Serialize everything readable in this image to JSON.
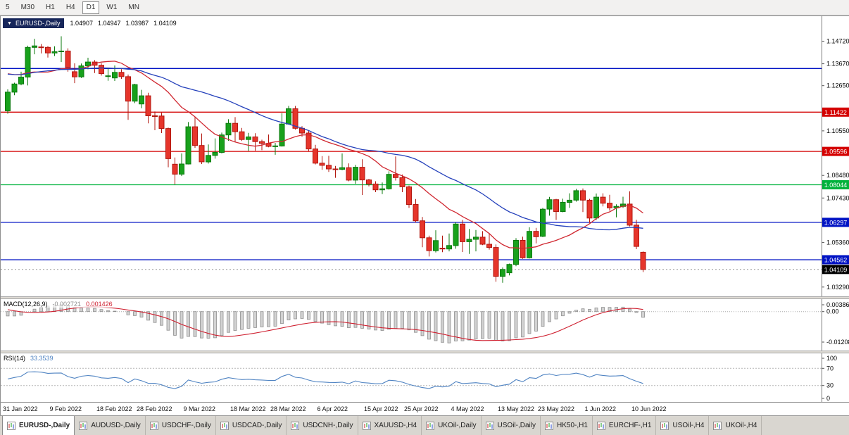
{
  "toolbar": {
    "timeframes": [
      {
        "label": "5",
        "selected": false
      },
      {
        "label": "M30",
        "selected": false
      },
      {
        "label": "H1",
        "selected": false
      },
      {
        "label": "H4",
        "selected": false
      },
      {
        "label": "D1",
        "selected": true
      },
      {
        "label": "W1",
        "selected": false
      },
      {
        "label": "MN",
        "selected": false
      }
    ]
  },
  "chart_header": {
    "collapse_icon": "▼",
    "symbol": "EURUSD-,Daily",
    "open": "1.04907",
    "high": "1.04947",
    "low": "1.03987",
    "close": "1.04109"
  },
  "colors": {
    "bull": "#18a11c",
    "bull_border": "#0b7a0e",
    "bear": "#e6352b",
    "bear_border": "#b2170f",
    "ma_fast": "#d02831",
    "ma_slow": "#2440bb",
    "sr_red": "#d40000",
    "sr_green": "#00b23c",
    "sr_blue": "#0013c4",
    "macd_signal": "#cf2030",
    "macd_bar_fill": "#d2d2d2",
    "macd_bar_stroke": "#8f8f8f",
    "rsi_line": "#4f83c2",
    "current_tag": "#000000"
  },
  "chart_data": [
    {
      "type": "candlestick",
      "symbol": "EURUSD-,Daily",
      "y_range": [
        1.0299,
        1.1575
      ],
      "y_ticks": [
        {
          "label": "1.14720",
          "value": 1.1472
        },
        {
          "label": "1.13670",
          "value": 1.1367
        },
        {
          "label": "1.12650",
          "value": 1.1265
        },
        {
          "label": "1.10550",
          "value": 1.1055
        },
        {
          "label": "1.08480",
          "value": 1.0848
        },
        {
          "label": "1.07430",
          "value": 1.0743
        },
        {
          "label": "1.05360",
          "value": 1.0536
        },
        {
          "label": "1.03290",
          "value": 1.0329
        }
      ],
      "x_labels": [
        {
          "label": "31 Jan 2022",
          "index": 0
        },
        {
          "label": "9 Feb 2022",
          "index": 7
        },
        {
          "label": "18 Feb 2022",
          "index": 14
        },
        {
          "label": "28 Feb 2022",
          "index": 20
        },
        {
          "label": "9 Mar 2022",
          "index": 27
        },
        {
          "label": "18 Mar 2022",
          "index": 34
        },
        {
          "label": "28 Mar 2022",
          "index": 40
        },
        {
          "label": "6 Apr 2022",
          "index": 47
        },
        {
          "label": "15 Apr 2022",
          "index": 54
        },
        {
          "label": "25 Apr 2022",
          "index": 60
        },
        {
          "label": "4 May 2022",
          "index": 67
        },
        {
          "label": "13 May 2022",
          "index": 74
        },
        {
          "label": "23 May 2022",
          "index": 80
        },
        {
          "label": "1 Jun 2022",
          "index": 87
        },
        {
          "label": "10 Jun 2022",
          "index": 94
        }
      ],
      "hlines": [
        {
          "value": 1.1345,
          "color": "sr_blue",
          "label": null
        },
        {
          "value": 1.11422,
          "color": "sr_red",
          "label": "1.11422"
        },
        {
          "value": 1.09596,
          "color": "sr_red",
          "label": "1.09596"
        },
        {
          "value": 1.08044,
          "color": "sr_green",
          "label": "1.08044"
        },
        {
          "value": 1.06297,
          "color": "sr_blue",
          "label": "1.06297"
        },
        {
          "value": 1.04562,
          "color": "sr_blue",
          "label": "1.04562"
        }
      ],
      "current_price": {
        "value": 1.04109,
        "label": "1.04109"
      },
      "moving_averages": [
        {
          "period": 14,
          "color": "ma_fast"
        },
        {
          "period": 30,
          "color": "ma_slow"
        }
      ],
      "indicator_warmup_closes": [
        1.13,
        1.129,
        1.131,
        1.132,
        1.1296,
        1.1331,
        1.1358,
        1.133,
        1.1296,
        1.132,
        1.1412,
        1.1452,
        1.1413,
        1.1324,
        1.1315,
        1.1345,
        1.1343,
        1.131,
        1.1246,
        1.1146
      ],
      "candles": [
        [
          1.1148,
          1.1248,
          1.1135,
          1.1235
        ],
        [
          1.1235,
          1.1279,
          1.1221,
          1.1273
        ],
        [
          1.1273,
          1.133,
          1.1267,
          1.1305
        ],
        [
          1.1305,
          1.1451,
          1.1266,
          1.1443
        ],
        [
          1.1443,
          1.1483,
          1.1411,
          1.145
        ],
        [
          1.1445,
          1.1459,
          1.1415,
          1.1443
        ],
        [
          1.1443,
          1.1449,
          1.1396,
          1.1417
        ],
        [
          1.1417,
          1.1448,
          1.1403,
          1.1423
        ],
        [
          1.1423,
          1.1495,
          1.1375,
          1.1426
        ],
        [
          1.1426,
          1.1439,
          1.133,
          1.1349
        ],
        [
          1.133,
          1.1369,
          1.1277,
          1.1306
        ],
        [
          1.1306,
          1.1368,
          1.1301,
          1.1357
        ],
        [
          1.1357,
          1.1395,
          1.1341,
          1.1375
        ],
        [
          1.1375,
          1.1384,
          1.1324,
          1.136
        ],
        [
          1.136,
          1.137,
          1.1312,
          1.1321
        ],
        [
          1.1311,
          1.1348,
          1.1288,
          1.1311
        ],
        [
          1.1301,
          1.1359,
          1.1287,
          1.1327
        ],
        [
          1.1327,
          1.1342,
          1.1297,
          1.1307
        ],
        [
          1.1307,
          1.1317,
          1.1106,
          1.1193
        ],
        [
          1.1193,
          1.1274,
          1.1184,
          1.127
        ],
        [
          1.118,
          1.1246,
          1.116,
          1.1218
        ],
        [
          1.1218,
          1.1232,
          1.109,
          1.1125
        ],
        [
          1.1125,
          1.1145,
          1.1058,
          1.1124
        ],
        [
          1.1124,
          1.1139,
          1.1045,
          1.1066
        ],
        [
          1.1066,
          1.107,
          1.0886,
          1.0926
        ],
        [
          1.09,
          1.0931,
          1.0806,
          1.0854
        ],
        [
          1.0854,
          1.095,
          1.0845,
          1.0901
        ],
        [
          1.0901,
          1.1096,
          1.0899,
          1.1074
        ],
        [
          1.1074,
          1.1121,
          1.0976,
          1.0987
        ],
        [
          1.0987,
          1.1043,
          1.0901,
          1.0911
        ],
        [
          1.0911,
          1.0992,
          1.0903,
          1.0941
        ],
        [
          1.0941,
          1.102,
          1.0926,
          1.0955
        ],
        [
          1.0955,
          1.1047,
          1.095,
          1.1036
        ],
        [
          1.1036,
          1.1109,
          1.1009,
          1.109
        ],
        [
          1.109,
          1.1119,
          1.1003,
          1.1051
        ],
        [
          1.1051,
          1.1069,
          1.1008,
          1.1015
        ],
        [
          1.1015,
          1.1046,
          1.0962,
          1.1027
        ],
        [
          1.1027,
          1.1044,
          1.0963,
          1.1005
        ],
        [
          1.1005,
          1.1014,
          1.0965,
          1.0997
        ],
        [
          1.0997,
          1.1038,
          1.0979,
          1.0983
        ],
        [
          1.0983,
          1.0999,
          1.0944,
          1.0985
        ],
        [
          1.0985,
          1.1137,
          1.0982,
          1.1087
        ],
        [
          1.1087,
          1.1171,
          1.1084,
          1.1158
        ],
        [
          1.1158,
          1.1171,
          1.1061,
          1.1067
        ],
        [
          1.1067,
          1.1077,
          1.1028,
          1.1045
        ],
        [
          1.1045,
          1.1055,
          1.0961,
          1.0971
        ],
        [
          1.0971,
          1.099,
          1.0899,
          1.0905
        ],
        [
          1.0905,
          1.0938,
          1.0874,
          1.0895
        ],
        [
          1.0895,
          1.0939,
          1.0864,
          1.0878
        ],
        [
          1.0878,
          1.0892,
          1.0837,
          1.0876
        ],
        [
          1.0876,
          1.095,
          1.0872,
          1.0884
        ],
        [
          1.0884,
          1.0904,
          1.0821,
          1.0826
        ],
        [
          1.0826,
          1.0897,
          1.0809,
          1.0886
        ],
        [
          1.0886,
          1.0923,
          1.0757,
          1.0827
        ],
        [
          1.0827,
          1.0832,
          1.0797,
          1.0808
        ],
        [
          1.0808,
          1.0821,
          1.077,
          1.0781
        ],
        [
          1.0781,
          1.0815,
          1.0761,
          1.0786
        ],
        [
          1.0786,
          1.0867,
          1.0782,
          1.0853
        ],
        [
          1.0853,
          1.0936,
          1.0824,
          1.0838
        ],
        [
          1.0838,
          1.0852,
          1.077,
          1.0795
        ],
        [
          1.0795,
          1.0801,
          1.0697,
          1.0713
        ],
        [
          1.0713,
          1.0738,
          1.0629,
          1.0637
        ],
        [
          1.0637,
          1.0655,
          1.0514,
          1.0558
        ],
        [
          1.0558,
          1.0568,
          1.0471,
          1.0498
        ],
        [
          1.0498,
          1.0593,
          1.049,
          1.0545
        ],
        [
          1.051,
          1.0568,
          1.0491,
          1.0506
        ],
        [
          1.0506,
          1.0578,
          1.0495,
          1.0522
        ],
        [
          1.0522,
          1.0631,
          1.0507,
          1.0622
        ],
        [
          1.0622,
          1.0641,
          1.0492,
          1.054
        ],
        [
          1.054,
          1.0599,
          1.0483,
          1.0551
        ],
        [
          1.0551,
          1.0594,
          1.0495,
          1.0561
        ],
        [
          1.0561,
          1.0589,
          1.0524,
          1.0528
        ],
        [
          1.0528,
          1.0579,
          1.0503,
          1.0513
        ],
        [
          1.0513,
          1.0527,
          1.0354,
          1.0379
        ],
        [
          1.0379,
          1.042,
          1.0349,
          1.0411
        ],
        [
          1.0395,
          1.0438,
          1.0383,
          1.0434
        ],
        [
          1.0434,
          1.0556,
          1.0426,
          1.0546
        ],
        [
          1.0546,
          1.0563,
          1.046,
          1.0465
        ],
        [
          1.0465,
          1.0607,
          1.0462,
          1.0588
        ],
        [
          1.0588,
          1.0604,
          1.0532,
          1.0563
        ],
        [
          1.0565,
          1.0697,
          1.0561,
          1.0691
        ],
        [
          1.0691,
          1.0748,
          1.0661,
          1.0735
        ],
        [
          1.0735,
          1.0739,
          1.0641,
          1.068
        ],
        [
          1.068,
          1.074,
          1.0677,
          1.0723
        ],
        [
          1.0723,
          1.0765,
          1.0697,
          1.0733
        ],
        [
          1.0733,
          1.0786,
          1.0726,
          1.0777
        ],
        [
          1.0777,
          1.0787,
          1.0678,
          1.0733
        ],
        [
          1.0733,
          1.0739,
          1.0627,
          1.065
        ],
        [
          1.065,
          1.0764,
          1.0641,
          1.0747
        ],
        [
          1.0747,
          1.0765,
          1.0704,
          1.0719
        ],
        [
          1.0719,
          1.0758,
          1.0684,
          1.0697
        ],
        [
          1.0697,
          1.0714,
          1.0653,
          1.0704
        ],
        [
          1.0704,
          1.0749,
          1.0697,
          1.0715
        ],
        [
          1.0715,
          1.0774,
          1.0611,
          1.0617
        ],
        [
          1.0617,
          1.0642,
          1.0505,
          1.0518
        ],
        [
          1.04907,
          1.04947,
          1.03987,
          1.04109
        ]
      ]
    },
    {
      "type": "macd",
      "name": "MACD(12,26,9)",
      "main_value": "-0.002721",
      "signal_value": "0.001426",
      "fast": 12,
      "slow": 26,
      "signal": 9,
      "y_ticks": [
        {
          "label": "0.00386",
          "value": 0.00386
        },
        {
          "label": "0.00",
          "value": 0
        },
        {
          "label": "-0.01208",
          "value": -0.01208
        }
      ]
    },
    {
      "type": "rsi",
      "name": "RSI(14)",
      "value": "33.3539",
      "period": 14,
      "levels": [
        70,
        30
      ],
      "y_ticks": [
        {
          "label": "100",
          "value": 100
        },
        {
          "label": "70",
          "value": 70
        },
        {
          "label": "30",
          "value": 30
        },
        {
          "label": "0",
          "value": 0
        }
      ]
    }
  ],
  "tabs": [
    {
      "label": "EURUSD-,Daily",
      "selected": true
    },
    {
      "label": "AUDUSD-,Daily",
      "selected": false
    },
    {
      "label": "USDCHF-,Daily",
      "selected": false
    },
    {
      "label": "USDCAD-,Daily",
      "selected": false
    },
    {
      "label": "USDCNH-,Daily",
      "selected": false
    },
    {
      "label": "XAUUSD-,H4",
      "selected": false
    },
    {
      "label": "UKOil-,Daily",
      "selected": false
    },
    {
      "label": "USOil-,Daily",
      "selected": false
    },
    {
      "label": "HK50-,H1",
      "selected": false
    },
    {
      "label": "EURCHF-,H1",
      "selected": false
    },
    {
      "label": "USOil-,H4",
      "selected": false
    },
    {
      "label": "UKOil-,H4",
      "selected": false
    }
  ]
}
